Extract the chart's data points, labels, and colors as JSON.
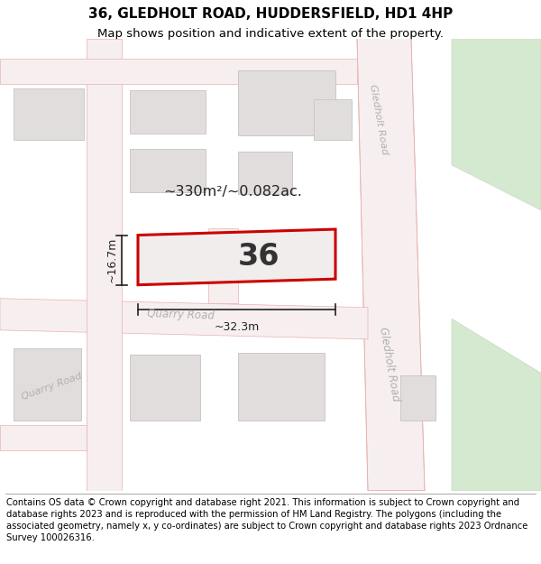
{
  "title_line1": "36, GLEDHOLT ROAD, HUDDERSFIELD, HD1 4HP",
  "title_line2": "Map shows position and indicative extent of the property.",
  "footer_text": "Contains OS data © Crown copyright and database right 2021. This information is subject to Crown copyright and database rights 2023 and is reproduced with the permission of HM Land Registry. The polygons (including the associated geometry, namely x, y co-ordinates) are subject to Crown copyright and database rights 2023 Ordnance Survey 100026316.",
  "area_label": "~330m²/~0.082ac.",
  "number_label": "36",
  "width_label": "~32.3m",
  "height_label": "~16.7m",
  "road_label_quarry_center": "Quarry Road",
  "road_label_quarry_left": "Quarry Road",
  "road_label_gledholt_top": "Gledholt Road",
  "road_label_gledholt_right": "Gledholt Road",
  "map_bg": "#eeecec",
  "road_fill": "#f7efef",
  "road_edge": "#e8b0b0",
  "block_fill": "#e2dddd",
  "block_edge": "#ccc8c8",
  "green_fill": "#d5e8d0",
  "green_edge": "#c0d8ba",
  "red_color": "#cc0000",
  "dim_color": "#222222",
  "road_text_color": "#b0b0b0",
  "title_fontsize": 11,
  "subtitle_fontsize": 9.5,
  "footer_fontsize": 7.2
}
